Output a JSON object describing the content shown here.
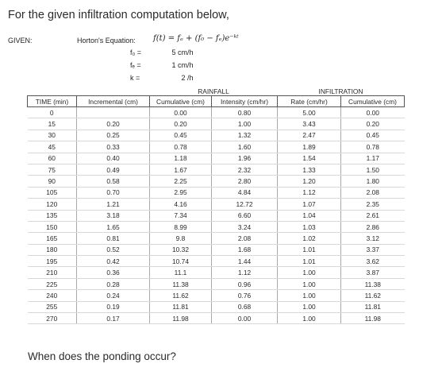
{
  "question": "For the given infiltration computation below,",
  "given": {
    "label": "GIVEN:",
    "equation_label": "Horton's Equation:",
    "equation": "f(t) = fₑ + (f₀ − fₑ)e⁻ᵏᵗ",
    "params": [
      {
        "name": "f₀ =",
        "value": "5 cm/h"
      },
      {
        "name": "fₑ =",
        "value": "1 cm/h"
      },
      {
        "name": "k =",
        "value": "2 /h"
      }
    ]
  },
  "table": {
    "group_rainfall": "RAINFALL",
    "group_infiltration": "INFILTRATION",
    "headers": [
      "TIME (min)",
      "Incremental (cm)",
      "Cumulative (cm)",
      "Intensity (cm/hr)",
      "Rate (cm/hr)",
      "Cumulative (cm)"
    ],
    "rows": [
      [
        "0",
        "",
        "0.00",
        "0.80",
        "5.00",
        "0.00"
      ],
      [
        "15",
        "0.20",
        "0.20",
        "1.00",
        "3.43",
        "0.20"
      ],
      [
        "30",
        "0.25",
        "0.45",
        "1.32",
        "2.47",
        "0.45"
      ],
      [
        "45",
        "0.33",
        "0.78",
        "1.60",
        "1.89",
        "0.78"
      ],
      [
        "60",
        "0.40",
        "1.18",
        "1.96",
        "1.54",
        "1.17"
      ],
      [
        "75",
        "0.49",
        "1.67",
        "2.32",
        "1.33",
        "1.50"
      ],
      [
        "90",
        "0.58",
        "2.25",
        "2.80",
        "1.20",
        "1.80"
      ],
      [
        "105",
        "0.70",
        "2.95",
        "4.84",
        "1.12",
        "2.08"
      ],
      [
        "120",
        "1.21",
        "4.16",
        "12.72",
        "1.07",
        "2.35"
      ],
      [
        "135",
        "3.18",
        "7.34",
        "6.60",
        "1.04",
        "2.61"
      ],
      [
        "150",
        "1.65",
        "8.99",
        "3.24",
        "1.03",
        "2.86"
      ],
      [
        "165",
        "0.81",
        "9.8",
        "2.08",
        "1.02",
        "3.12"
      ],
      [
        "180",
        "0.52",
        "10.32",
        "1.68",
        "1.01",
        "3.37"
      ],
      [
        "195",
        "0.42",
        "10.74",
        "1.44",
        "1.01",
        "3.62"
      ],
      [
        "210",
        "0.36",
        "11.1",
        "1.12",
        "1.00",
        "3.87"
      ],
      [
        "225",
        "0.28",
        "11.38",
        "0.96",
        "1.00",
        "11.38"
      ],
      [
        "240",
        "0.24",
        "11.62",
        "0.76",
        "1.00",
        "11.62"
      ],
      [
        "255",
        "0.19",
        "11.81",
        "0.68",
        "1.00",
        "11.81"
      ],
      [
        "270",
        "0.17",
        "11.98",
        "0.00",
        "1.00",
        "11.98"
      ]
    ]
  },
  "footer_question": "When does the ponding occur?"
}
